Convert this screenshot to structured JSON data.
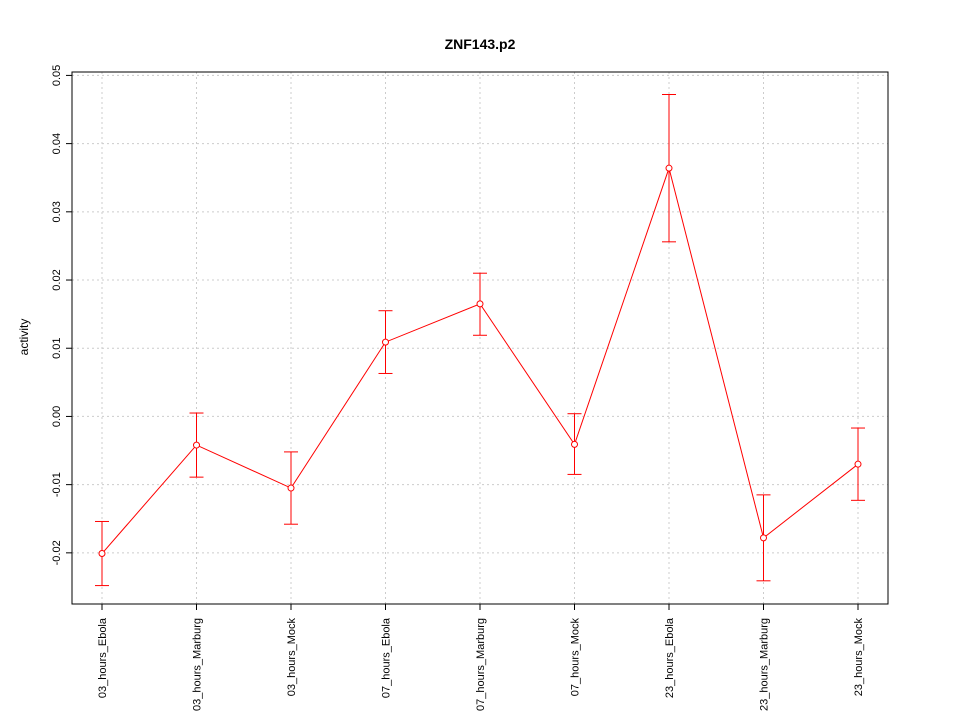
{
  "chart_data": {
    "type": "line",
    "title": "ZNF143.p2",
    "xlabel": "",
    "ylabel": "activity",
    "ylim": [
      -0.0275,
      0.0505
    ],
    "yticks": [
      -0.02,
      -0.01,
      0.0,
      0.01,
      0.02,
      0.03,
      0.04,
      0.05
    ],
    "ytick_labels": [
      "-0.02",
      "-0.01",
      "0.00",
      "0.01",
      "0.02",
      "0.03",
      "0.04",
      "0.05"
    ],
    "categories": [
      "03_hours_Ebola",
      "03_hours_Marburg",
      "03_hours_Mock",
      "07_hours_Ebola",
      "07_hours_Marburg",
      "07_hours_Mock",
      "23_hours_Ebola",
      "23_hours_Marburg",
      "23_hours_Mock"
    ],
    "series": [
      {
        "values": [
          -0.0201,
          -0.0042,
          -0.0105,
          0.0109,
          0.0165,
          -0.0041,
          0.0364,
          -0.0178,
          -0.007
        ],
        "err_low": [
          -0.0248,
          -0.0089,
          -0.0158,
          0.0063,
          0.0119,
          -0.0085,
          0.0256,
          -0.0241,
          -0.0123
        ],
        "err_high": [
          -0.0154,
          0.0005,
          -0.0052,
          0.0155,
          0.021,
          0.0004,
          0.0472,
          -0.0115,
          -0.0017
        ],
        "color": "#ff0000"
      }
    ],
    "grid": true,
    "grid_color": "#cccccc",
    "hline": 0.0
  }
}
